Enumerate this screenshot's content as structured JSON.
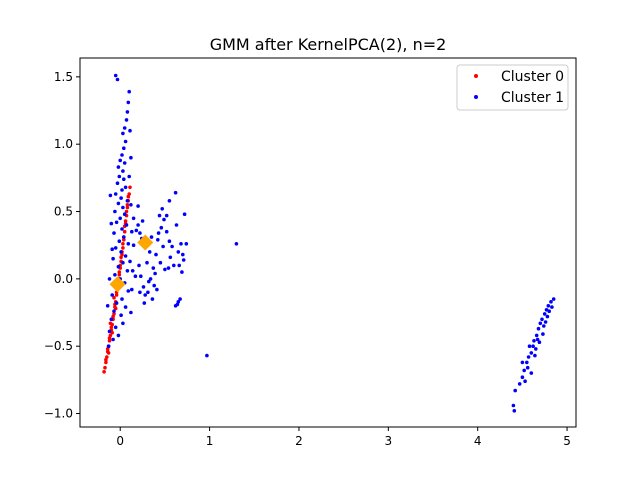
{
  "chart_data": {
    "type": "scatter",
    "title": "GMM after KernelPCA(2), n=2",
    "xlabel": "",
    "ylabel": "",
    "xlim": [
      -0.45,
      5.1
    ],
    "ylim": [
      -1.1,
      1.64
    ],
    "x_ticks": [
      0,
      1,
      2,
      3,
      4,
      5
    ],
    "x_tick_labels": [
      "0",
      "1",
      "2",
      "3",
      "4",
      "5"
    ],
    "y_ticks": [
      -1.0,
      -0.5,
      0.0,
      0.5,
      1.0,
      1.5
    ],
    "y_tick_labels": [
      "−1.0",
      "−0.5",
      "0.0",
      "0.5",
      "1.0",
      "1.5"
    ],
    "grid": false,
    "legend": {
      "placement": "top-right",
      "entries": [
        "Cluster 0",
        "Cluster 1"
      ]
    },
    "series": [
      {
        "name": "Cluster 0",
        "color": "#ff0000",
        "points": [
          [
            -0.18,
            -0.69
          ],
          [
            -0.17,
            -0.66
          ],
          [
            -0.16,
            -0.62
          ],
          [
            -0.15,
            -0.58
          ],
          [
            -0.14,
            -0.54
          ],
          [
            -0.13,
            -0.5
          ],
          [
            -0.12,
            -0.46
          ],
          [
            -0.11,
            -0.42
          ],
          [
            -0.1,
            -0.38
          ],
          [
            -0.09,
            -0.34
          ],
          [
            -0.08,
            -0.3
          ],
          [
            -0.07,
            -0.26
          ],
          [
            -0.06,
            -0.21
          ],
          [
            -0.05,
            -0.17
          ],
          [
            -0.04,
            -0.12
          ],
          [
            -0.03,
            -0.07
          ],
          [
            -0.02,
            -0.02
          ],
          [
            -0.01,
            0.03
          ],
          [
            0.0,
            0.08
          ],
          [
            0.01,
            0.13
          ],
          [
            0.02,
            0.18
          ],
          [
            0.03,
            0.23
          ],
          [
            0.04,
            0.29
          ],
          [
            0.05,
            0.35
          ],
          [
            0.06,
            0.41
          ],
          [
            0.07,
            0.47
          ],
          [
            0.08,
            0.53
          ],
          [
            0.09,
            0.58
          ],
          [
            0.1,
            0.63
          ],
          [
            0.11,
            0.68
          ],
          [
            -0.16,
            -0.6
          ],
          [
            -0.14,
            -0.52
          ],
          [
            -0.12,
            -0.44
          ],
          [
            -0.1,
            -0.36
          ],
          [
            -0.08,
            -0.28
          ],
          [
            -0.06,
            -0.19
          ],
          [
            -0.04,
            -0.1
          ],
          [
            -0.02,
            0.0
          ],
          [
            0.0,
            0.1
          ],
          [
            0.02,
            0.2
          ],
          [
            0.04,
            0.31
          ],
          [
            0.06,
            0.43
          ],
          [
            0.08,
            0.55
          ],
          [
            -0.13,
            -0.55
          ],
          [
            -0.09,
            -0.4
          ],
          [
            -0.05,
            -0.22
          ],
          [
            -0.01,
            0.05
          ],
          [
            0.03,
            0.26
          ],
          [
            0.07,
            0.5
          ],
          [
            -0.11,
            -0.33
          ],
          [
            -0.07,
            -0.14
          ],
          [
            -0.03,
            -0.04
          ],
          [
            0.01,
            0.16
          ],
          [
            0.05,
            0.39
          ],
          [
            0.09,
            0.61
          ]
        ]
      },
      {
        "name": "Cluster 1",
        "color": "#0000ff",
        "points": [
          [
            -0.05,
            1.51
          ],
          [
            -0.03,
            1.48
          ],
          [
            0.1,
            1.39
          ],
          [
            0.09,
            1.31
          ],
          [
            0.08,
            1.24
          ],
          [
            0.07,
            1.18
          ],
          [
            0.05,
            1.12
          ],
          [
            0.03,
            1.08
          ],
          [
            0.06,
            1.02
          ],
          [
            0.04,
            0.97
          ],
          [
            0.02,
            0.92
          ],
          [
            0.0,
            0.88
          ],
          [
            0.05,
            0.86
          ],
          [
            -0.02,
            0.83
          ],
          [
            0.03,
            0.8
          ],
          [
            -0.01,
            0.76
          ],
          [
            0.04,
            0.74
          ],
          [
            -0.03,
            0.71
          ],
          [
            0.06,
            0.68
          ],
          [
            0.02,
            0.66
          ],
          [
            -0.05,
            0.63
          ],
          [
            0.01,
            0.6
          ],
          [
            0.08,
            0.58
          ],
          [
            -0.02,
            0.56
          ],
          [
            0.03,
            0.53
          ],
          [
            -0.06,
            0.5
          ],
          [
            0.05,
            0.48
          ],
          [
            0.0,
            0.45
          ],
          [
            -0.04,
            0.42
          ],
          [
            0.07,
            0.4
          ],
          [
            0.02,
            0.37
          ],
          [
            -0.07,
            0.34
          ],
          [
            0.04,
            0.31
          ],
          [
            -0.01,
            0.28
          ],
          [
            0.09,
            0.26
          ],
          [
            -0.05,
            0.23
          ],
          [
            0.01,
            0.2
          ],
          [
            0.06,
            0.17
          ],
          [
            -0.08,
            0.15
          ],
          [
            0.03,
            0.12
          ],
          [
            -0.02,
            0.09
          ],
          [
            0.08,
            0.06
          ],
          [
            -0.06,
            0.03
          ],
          [
            0.0,
            0.0
          ],
          [
            0.05,
            -0.03
          ],
          [
            -0.03,
            -0.06
          ],
          [
            0.09,
            -0.09
          ],
          [
            -0.09,
            -0.12
          ],
          [
            0.02,
            -0.15
          ],
          [
            -0.04,
            -0.18
          ],
          [
            0.06,
            -0.21
          ],
          [
            -0.07,
            -0.24
          ],
          [
            0.01,
            -0.27
          ],
          [
            -0.1,
            -0.3
          ],
          [
            0.03,
            -0.33
          ],
          [
            -0.05,
            -0.36
          ],
          [
            -0.12,
            -0.39
          ],
          [
            -0.02,
            -0.42
          ],
          [
            -0.08,
            -0.45
          ],
          [
            -0.13,
            -0.5
          ],
          [
            0.12,
            0.9
          ],
          [
            0.11,
            1.1
          ],
          [
            0.1,
            0.76
          ],
          [
            0.12,
            0.55
          ],
          [
            0.13,
            0.35
          ],
          [
            -0.1,
            0.41
          ],
          [
            -0.11,
            0.62
          ],
          [
            -0.09,
            0.22
          ],
          [
            -0.12,
            0.0
          ],
          [
            0.11,
            0.13
          ],
          [
            0.14,
            0.06
          ],
          [
            0.13,
            -0.08
          ],
          [
            0.12,
            -0.25
          ],
          [
            -0.14,
            -0.2
          ],
          [
            0.15,
            0.25
          ],
          [
            0.18,
            0.36
          ],
          [
            0.2,
            0.4
          ],
          [
            0.22,
            0.34
          ],
          [
            0.24,
            0.3
          ],
          [
            0.25,
            0.43
          ],
          [
            0.21,
            0.1
          ],
          [
            0.23,
            0.02
          ],
          [
            0.26,
            -0.06
          ],
          [
            0.28,
            -0.12
          ],
          [
            0.3,
            0.12
          ],
          [
            0.32,
            -0.02
          ],
          [
            0.33,
            0.2
          ],
          [
            0.35,
            0.31
          ],
          [
            0.37,
            0.08
          ],
          [
            0.38,
            -0.05
          ],
          [
            0.4,
            0.18
          ],
          [
            0.42,
            0.29
          ],
          [
            0.44,
            0.47
          ],
          [
            0.46,
            0.38
          ],
          [
            0.48,
            0.24
          ],
          [
            0.45,
            0.12
          ],
          [
            0.5,
            0.07
          ],
          [
            0.36,
            -0.15
          ],
          [
            0.27,
            -0.18
          ],
          [
            0.31,
            -0.1
          ],
          [
            0.39,
            0.04
          ],
          [
            0.43,
            0.34
          ],
          [
            0.47,
            0.52
          ],
          [
            0.49,
            0.44
          ],
          [
            0.52,
            0.47
          ],
          [
            0.55,
            0.58
          ],
          [
            0.52,
            0.35
          ],
          [
            0.55,
            0.28
          ],
          [
            0.56,
            0.16
          ],
          [
            0.54,
            0.08
          ],
          [
            0.58,
            0.24
          ],
          [
            0.6,
            0.1
          ],
          [
            0.62,
            0.64
          ],
          [
            0.63,
            0.4
          ],
          [
            0.65,
            0.2
          ],
          [
            0.66,
            0.1
          ],
          [
            0.68,
            0.26
          ],
          [
            0.72,
            0.48
          ],
          [
            0.7,
            0.18
          ],
          [
            0.74,
            0.26
          ],
          [
            0.71,
            0.14
          ],
          [
            0.69,
            0.05
          ],
          [
            0.65,
            -0.17
          ],
          [
            0.62,
            -0.2
          ],
          [
            0.67,
            -0.15
          ],
          [
            0.64,
            -0.19
          ],
          [
            0.97,
            -0.57
          ],
          [
            1.3,
            0.26
          ],
          [
            0.2,
            0.54
          ],
          [
            0.15,
            0.45
          ],
          [
            0.17,
            0.02
          ],
          [
            0.22,
            -0.1
          ],
          [
            0.29,
            0.26
          ],
          [
            0.41,
            -0.08
          ],
          [
            0.34,
            0.0
          ],
          [
            4.4,
            -0.94
          ],
          [
            4.41,
            -0.98
          ],
          [
            4.42,
            -0.83
          ],
          [
            4.47,
            -0.78
          ],
          [
            4.5,
            -0.73
          ],
          [
            4.52,
            -0.68
          ],
          [
            4.55,
            -0.62
          ],
          [
            4.57,
            -0.58
          ],
          [
            4.6,
            -0.55
          ],
          [
            4.62,
            -0.5
          ],
          [
            4.63,
            -0.46
          ],
          [
            4.66,
            -0.42
          ],
          [
            4.68,
            -0.37
          ],
          [
            4.7,
            -0.33
          ],
          [
            4.72,
            -0.3
          ],
          [
            4.75,
            -0.26
          ],
          [
            4.77,
            -0.23
          ],
          [
            4.79,
            -0.2
          ],
          [
            4.82,
            -0.17
          ],
          [
            4.85,
            -0.15
          ],
          [
            4.5,
            -0.62
          ],
          [
            4.56,
            -0.66
          ],
          [
            4.58,
            -0.5
          ],
          [
            4.64,
            -0.57
          ],
          [
            4.67,
            -0.45
          ],
          [
            4.73,
            -0.41
          ],
          [
            4.74,
            -0.35
          ],
          [
            4.78,
            -0.28
          ],
          [
            4.8,
            -0.24
          ],
          [
            4.83,
            -0.21
          ],
          [
            4.53,
            -0.76
          ],
          [
            4.6,
            -0.7
          ],
          [
            4.65,
            -0.52
          ],
          [
            4.69,
            -0.47
          ],
          [
            4.76,
            -0.32
          ]
        ]
      }
    ],
    "centers": {
      "color": "#ffa500",
      "marker": "diamond",
      "points": [
        [
          -0.03,
          -0.04
        ],
        [
          0.28,
          0.27
        ]
      ]
    }
  }
}
